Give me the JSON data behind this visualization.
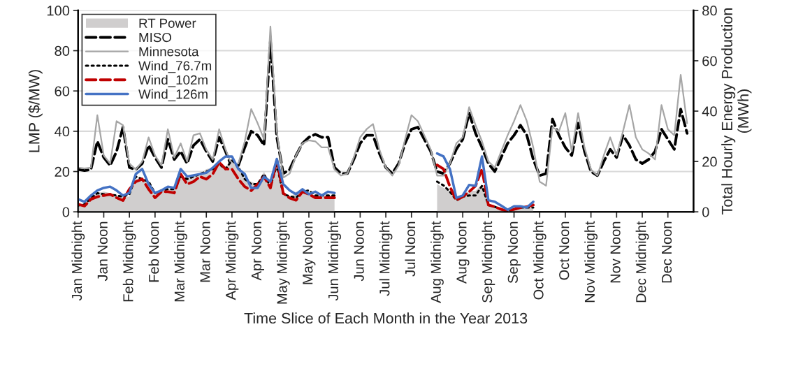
{
  "chart_data": {
    "type": "line",
    "xlabel": "Time Slice of Each Month in the Year 2013",
    "ylabel": "LMP ($/MW)",
    "y2label": "Total Hourly Energy Production\n(MWh)",
    "categories": [
      "Jan Midnight",
      null,
      null,
      null,
      "Jan Noon",
      null,
      null,
      null,
      "Feb Midnight",
      null,
      null,
      null,
      "Feb Noon",
      null,
      null,
      null,
      "Mar Midnight",
      null,
      null,
      null,
      "Mar Noon",
      null,
      null,
      null,
      "Apr Midnight",
      null,
      null,
      null,
      "Apr Noon",
      null,
      null,
      null,
      "May Midnight",
      null,
      null,
      null,
      "May Noon",
      null,
      null,
      null,
      "Jun Midnight",
      null,
      null,
      null,
      "Jun Noon",
      null,
      null,
      null,
      "Jul Midnight",
      null,
      null,
      null,
      "Jul Noon",
      null,
      null,
      null,
      "Aug Midnight",
      null,
      null,
      null,
      "Aug Noon",
      null,
      null,
      null,
      "Sep Midnight",
      null,
      null,
      null,
      "Sep Noon",
      null,
      null,
      null,
      "Oct Midnight",
      null,
      null,
      null,
      "Oct Noon",
      null,
      null,
      null,
      "Nov Midnight",
      null,
      null,
      null,
      "Nov Noon",
      null,
      null,
      null,
      "Dec Midnight",
      null,
      null,
      null,
      "Dec Noon",
      null,
      null,
      null
    ],
    "ylim": [
      0,
      100
    ],
    "yticks": [
      0,
      20,
      40,
      60,
      80,
      100
    ],
    "y2lim": [
      0,
      80
    ],
    "y2ticks": [
      0,
      20,
      40,
      60,
      80
    ],
    "grid": "y",
    "legend": "top left",
    "series": [
      {
        "name": "RT Power",
        "type": "area",
        "axis": "y2",
        "color": "#d0cece",
        "values": [
          2,
          3,
          6,
          7.5,
          8,
          7.5,
          6.5,
          6,
          6,
          13,
          13,
          12,
          7.5,
          8.5,
          9,
          9,
          14,
          13,
          14,
          15,
          17,
          17.5,
          19,
          18,
          20,
          18,
          13,
          12,
          11,
          16,
          10,
          18.5,
          7,
          5.5,
          8,
          7.5,
          7,
          6.5,
          6.5,
          6.5,
          6.5,
          null,
          null,
          null,
          null,
          null,
          null,
          null,
          null,
          null,
          null,
          null,
          null,
          null,
          null,
          null,
          11,
          9.5,
          8.4,
          4.6,
          6.5,
          8.4,
          8.4,
          11,
          3.2,
          1.7,
          0.8,
          0.3,
          1,
          1.5,
          1.7,
          1.7,
          null,
          null,
          null,
          null,
          null,
          null,
          null,
          null,
          null,
          null,
          null,
          null,
          null,
          null,
          null,
          null,
          null,
          null,
          null,
          null,
          null,
          null,
          null,
          null
        ]
      },
      {
        "name": "MISO",
        "line_style": "dashed",
        "color": "#000000",
        "values": [
          21,
          20.5,
          21,
          35,
          27,
          23,
          30,
          42,
          22,
          21,
          24,
          33,
          27,
          22,
          36,
          26,
          30,
          24,
          33,
          36,
          30,
          25,
          37,
          30,
          22,
          23,
          32,
          40,
          38,
          33,
          85,
          37,
          19,
          21,
          28,
          34,
          37,
          38.5,
          37,
          37,
          22,
          19,
          19,
          26,
          34,
          38,
          38,
          29,
          22,
          19,
          24,
          34,
          41,
          42,
          36,
          30,
          20,
          19,
          24,
          31,
          36,
          49,
          39,
          32,
          24,
          20,
          27,
          34,
          38,
          43,
          38,
          26,
          18,
          19,
          46,
          38,
          32,
          28,
          44,
          30,
          20,
          18,
          25,
          31,
          27,
          38,
          33,
          26,
          24,
          26,
          30,
          41,
          36,
          31,
          51,
          39
        ]
      },
      {
        "name": "Minnesota",
        "line_style": "solid",
        "color": "#a6a6a6",
        "values": [
          22,
          21.5,
          22,
          48,
          28,
          24,
          45,
          43,
          24,
          21,
          25,
          37,
          28,
          23,
          41,
          27,
          34,
          25,
          38,
          39,
          31,
          26,
          41,
          31,
          23,
          24,
          35,
          51,
          44,
          36,
          92,
          40,
          17,
          19,
          28,
          34,
          35.5,
          35,
          32,
          32,
          21,
          18,
          19,
          27,
          37,
          41,
          43.6,
          31,
          22,
          18,
          23,
          36,
          48,
          45,
          38,
          31,
          18,
          18,
          24,
          34,
          37,
          52,
          43,
          35,
          25,
          22,
          30,
          38,
          45,
          53,
          45,
          32,
          15,
          13,
          42,
          40,
          49,
          30,
          49,
          32,
          21,
          18,
          28,
          37,
          28,
          40,
          53,
          37,
          31,
          29,
          26,
          53,
          41,
          38,
          68,
          44
        ]
      },
      {
        "name": "Wind_76.7m",
        "axis": "y2",
        "line_style": "dotted",
        "color": "#000000",
        "values": [
          2.5,
          3,
          5.5,
          7.4,
          7,
          6.8,
          6.5,
          6,
          7,
          14,
          13,
          12,
          7.4,
          8.5,
          9,
          9,
          14,
          13,
          14,
          15,
          16,
          17,
          19,
          17,
          20.5,
          17.8,
          13,
          11,
          11,
          15,
          10,
          18.6,
          7,
          6.2,
          5.6,
          8,
          8.5,
          6.5,
          6.5,
          6.5,
          6.5,
          null,
          null,
          null,
          null,
          null,
          null,
          null,
          null,
          null,
          null,
          null,
          null,
          null,
          null,
          null,
          12,
          10.5,
          8,
          4.6,
          6,
          6.5,
          6.5,
          10.3,
          2.7,
          2,
          1,
          0.3,
          1,
          1.7,
          1.7,
          1.7,
          null,
          null,
          null,
          null,
          null,
          null,
          null,
          null,
          null,
          null,
          null,
          null,
          null,
          null,
          null,
          null,
          null,
          null,
          null,
          null,
          null,
          null,
          null,
          null
        ]
      },
      {
        "name": "Wind_102m",
        "axis": "y2",
        "line_style": "dashed",
        "color": "#c00000",
        "values": [
          3,
          2.3,
          5,
          6,
          6.5,
          7,
          5.6,
          4.5,
          9,
          12,
          13,
          9,
          5.6,
          8,
          8,
          7.5,
          15,
          11,
          12,
          14,
          13,
          15,
          19.7,
          17,
          17,
          13,
          10,
          8.4,
          11,
          14,
          9.5,
          20.5,
          7.4,
          5.5,
          4.6,
          8,
          7,
          5.6,
          5.6,
          5.6,
          5.6,
          null,
          null,
          null,
          null,
          null,
          null,
          null,
          null,
          null,
          null,
          null,
          null,
          null,
          null,
          null,
          18.6,
          17,
          10,
          4.6,
          6,
          8,
          10.3,
          17,
          2.7,
          2,
          1,
          0.3,
          1,
          1.7,
          2,
          2.7,
          null,
          null,
          null,
          null,
          null,
          null,
          null,
          null,
          null,
          null,
          null,
          null,
          null,
          null,
          null,
          null,
          null,
          null,
          null,
          null,
          null,
          null,
          null,
          null
        ]
      },
      {
        "name": "Wind_126m",
        "axis": "y2",
        "line_style": "solid",
        "color": "#4472c4",
        "values": [
          5,
          4,
          6.5,
          8.5,
          9.5,
          10,
          8.5,
          6.5,
          7.5,
          15,
          17,
          11,
          7.5,
          8.5,
          10,
          9.5,
          17,
          14,
          14.5,
          15,
          15.5,
          17.5,
          20,
          22,
          22,
          17,
          15,
          9.5,
          9.5,
          14,
          12,
          21,
          11,
          8.5,
          7,
          9,
          7,
          8,
          6.5,
          8,
          7.5,
          null,
          null,
          null,
          null,
          null,
          null,
          null,
          null,
          null,
          null,
          null,
          null,
          null,
          null,
          null,
          23.2,
          22,
          17,
          5.6,
          6.5,
          10.7,
          10.3,
          22,
          4.6,
          4,
          2.5,
          0.8,
          2.2,
          2.2,
          1.7,
          4,
          null,
          null,
          null,
          null,
          null,
          null,
          null,
          null,
          null,
          null,
          null,
          null,
          null,
          null,
          null,
          null,
          null,
          null,
          null,
          null,
          null,
          null,
          null,
          null
        ]
      }
    ]
  }
}
